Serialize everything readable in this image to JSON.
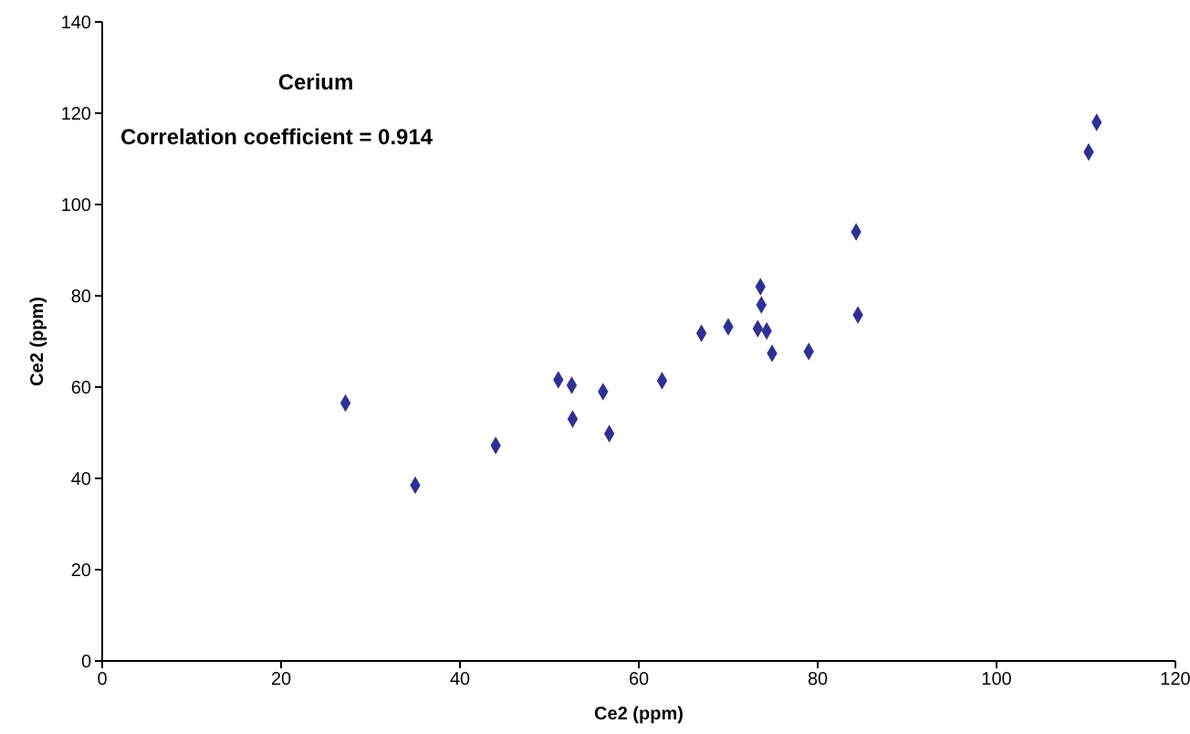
{
  "chart_data": {
    "type": "scatter",
    "title": "Cerium",
    "annotations": [
      "Correlation coefficient = 0.914"
    ],
    "xlabel": "Ce2 (ppm)",
    "ylabel": "Ce2 (ppm)",
    "x": [
      27.2,
      35,
      44,
      51,
      52.5,
      52.6,
      56,
      56.7,
      62.6,
      67,
      70,
      73.3,
      73.6,
      73.7,
      74.3,
      74.9,
      79,
      84.3,
      84.5,
      110.3,
      111.2
    ],
    "series": [
      {
        "color": "#2e3192",
        "values": [
          56.5,
          38.5,
          47.2,
          61.6,
          60.4,
          53,
          59,
          49.8,
          61.4,
          71.8,
          73.2,
          72.8,
          82,
          78,
          72.3,
          67.4,
          67.8,
          94,
          75.8,
          111.5,
          118
        ]
      }
    ],
    "xlim": [
      0,
      120
    ],
    "xticks": [
      0,
      20,
      40,
      60,
      80,
      100,
      120
    ],
    "ylim": [
      0,
      140
    ],
    "yticks": [
      0,
      20,
      40,
      60,
      80,
      100,
      120,
      140
    ],
    "marker": "diamond",
    "grid": false
  }
}
